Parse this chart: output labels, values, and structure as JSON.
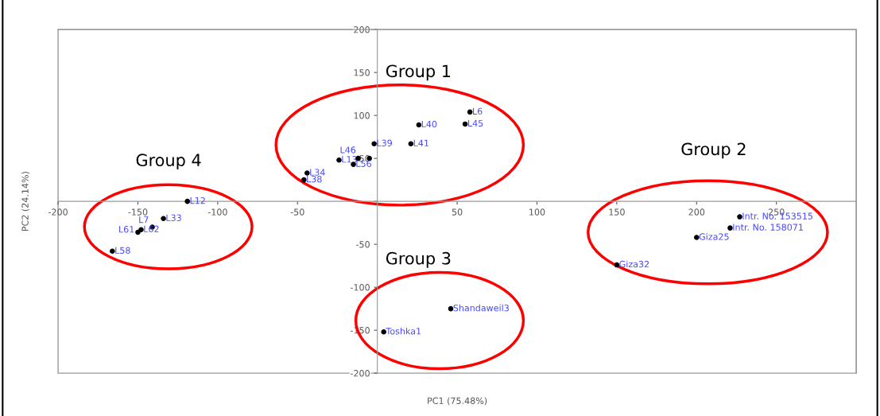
{
  "chart_data": {
    "type": "scatter",
    "xlabel": "PC1 (75.48%)",
    "ylabel": "PC2 (24.14%)",
    "xlim": [
      -200,
      300
    ],
    "ylim": [
      -200,
      200
    ],
    "xticks": [
      -200,
      -150,
      -100,
      -50,
      {
        "value": 0,
        "label": null
      },
      50,
      100,
      150,
      200,
      250
    ],
    "yticks": [
      -200,
      -150,
      -100,
      -50,
      {
        "value": 0,
        "label": null
      },
      50,
      100,
      150,
      200
    ],
    "grid": false,
    "legend": false,
    "marker": "circle",
    "annotations": [
      "Group 1",
      "Group 2",
      "Group 3",
      "Group 4"
    ],
    "series": [
      {
        "name": "L12",
        "color": "#000000",
        "x": [
          -119
        ],
        "values": [
          0
        ]
      },
      {
        "name": "L33",
        "color": "#000000",
        "x": [
          -134
        ],
        "values": [
          -20
        ]
      },
      {
        "name": "L7",
        "color": "#000000",
        "x": [
          -141
        ],
        "values": [
          -30
        ]
      },
      {
        "name": "L62",
        "color": "#000000",
        "x": [
          -148
        ],
        "values": [
          -33
        ]
      },
      {
        "name": "L61",
        "color": "#000000",
        "x": [
          -150
        ],
        "values": [
          -36
        ]
      },
      {
        "name": "L58",
        "color": "#000000",
        "x": [
          -166
        ],
        "values": [
          -58
        ]
      },
      {
        "name": "L38",
        "color": "#000000",
        "x": [
          -46
        ],
        "values": [
          25
        ]
      },
      {
        "name": "L34",
        "color": "#000000",
        "x": [
          -44
        ],
        "values": [
          33
        ]
      },
      {
        "name": "L13",
        "color": "#000000",
        "x": [
          -24
        ],
        "values": [
          48
        ]
      },
      {
        "name": "L46",
        "color": "#000000",
        "x": [
          -12
        ],
        "values": [
          50
        ]
      },
      {
        "color": "#000000",
        "x": [
          -5
        ],
        "values": [
          50
        ]
      },
      {
        "name": "L56",
        "color": "#000000",
        "x": [
          -15
        ],
        "values": [
          43
        ]
      },
      {
        "name": "L39",
        "color": "#000000",
        "x": [
          -2
        ],
        "values": [
          67
        ]
      },
      {
        "name": "L41",
        "color": "#000000",
        "x": [
          21
        ],
        "values": [
          67
        ]
      },
      {
        "name": "L40",
        "color": "#000000",
        "x": [
          26
        ],
        "values": [
          89
        ]
      },
      {
        "name": "L45",
        "color": "#000000",
        "x": [
          55
        ],
        "values": [
          90
        ]
      },
      {
        "name": "L6",
        "color": "#000000",
        "x": [
          58
        ],
        "values": [
          104
        ]
      },
      {
        "name": "Intr. No. 153515",
        "color": "#000000",
        "x": [
          227
        ],
        "values": [
          -18
        ]
      },
      {
        "name": "Intr. No. 158071",
        "color": "#000000",
        "x": [
          221
        ],
        "values": [
          -31
        ]
      },
      {
        "name": "Giza25",
        "color": "#000000",
        "x": [
          200
        ],
        "values": [
          -42
        ]
      },
      {
        "name": "Giza32",
        "color": "#000000",
        "x": [
          150
        ],
        "values": [
          -74
        ]
      },
      {
        "name": "Shandaweil3",
        "color": "#000000",
        "x": [
          46
        ],
        "values": [
          -125
        ]
      },
      {
        "name": "Toshka1",
        "color": "#000000",
        "x": [
          4
        ],
        "values": [
          -152
        ]
      }
    ]
  }
}
